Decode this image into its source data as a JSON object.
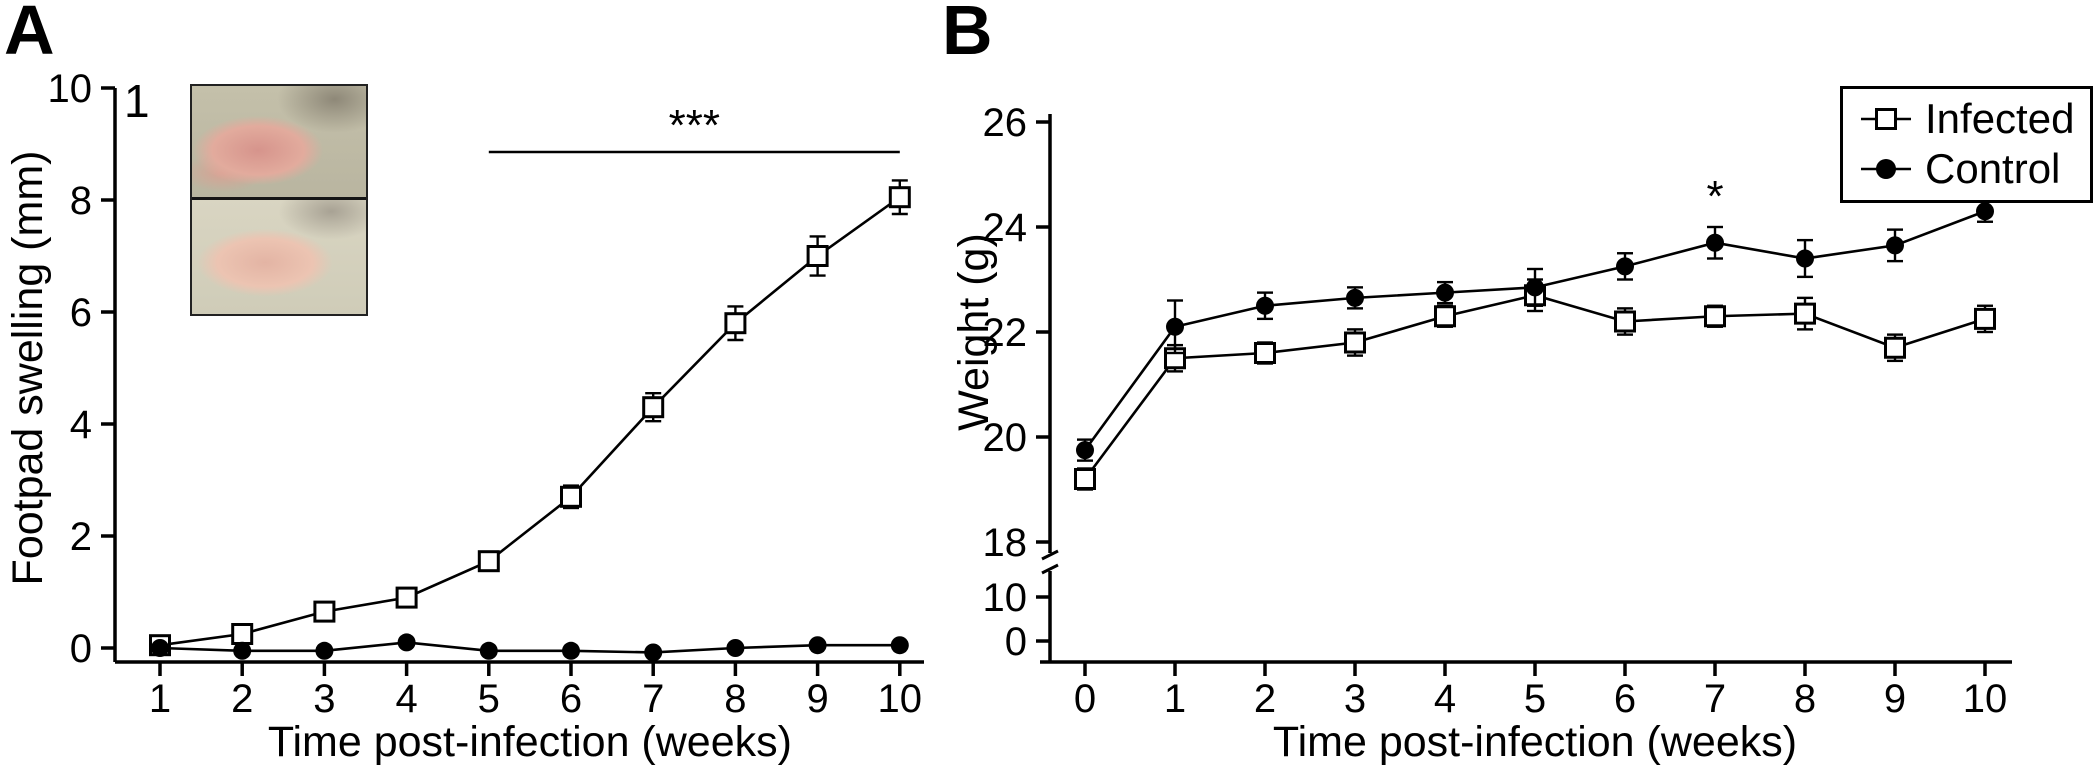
{
  "colors": {
    "background": "#ffffff",
    "foreground": "#000000"
  },
  "chart_data": [
    {
      "id": "panelA",
      "type": "line",
      "panel_label": "A",
      "inset_label": "1",
      "xlabel": "Time post-infection (weeks)",
      "ylabel": "Footpad swelling (mm)",
      "x": [
        1,
        2,
        3,
        4,
        5,
        6,
        7,
        8,
        9,
        10
      ],
      "ylim": [
        0,
        10
      ],
      "yticks": [
        0,
        2,
        4,
        6,
        8,
        10
      ],
      "grid": false,
      "series": [
        {
          "name": "Infected",
          "marker": "square-open",
          "values": [
            0.05,
            0.25,
            0.65,
            0.9,
            1.55,
            2.7,
            4.3,
            5.8,
            7.0,
            8.05
          ],
          "errors": [
            0.1,
            0.1,
            0.12,
            0.12,
            0.15,
            0.2,
            0.25,
            0.3,
            0.35,
            0.3
          ]
        },
        {
          "name": "Control",
          "marker": "circle-filled",
          "values": [
            0.0,
            -0.05,
            -0.05,
            0.1,
            -0.05,
            -0.05,
            -0.08,
            0.0,
            0.05,
            0.05
          ],
          "errors": [
            0.05,
            0.05,
            0.05,
            0.05,
            0.05,
            0.05,
            0.05,
            0.05,
            0.05,
            0.05
          ]
        }
      ],
      "significance_bar": {
        "x_start": 5,
        "x_end": 10,
        "label": "***"
      }
    },
    {
      "id": "panelB",
      "type": "line",
      "panel_label": "B",
      "xlabel": "Time post-infection (weeks)",
      "ylabel": "Weight (g)",
      "x": [
        0,
        1,
        2,
        3,
        4,
        5,
        6,
        7,
        8,
        9,
        10
      ],
      "ylim": [
        18,
        26
      ],
      "yticks": [
        18,
        20,
        22,
        24,
        26
      ],
      "broken_axis_ticks": [
        10,
        0
      ],
      "grid": false,
      "series": [
        {
          "name": "Infected",
          "marker": "square-open",
          "values": [
            19.2,
            21.5,
            21.6,
            21.8,
            22.3,
            22.7,
            22.2,
            22.3,
            22.35,
            21.7,
            22.25
          ],
          "errors": [
            0.2,
            0.25,
            0.2,
            0.25,
            0.2,
            0.3,
            0.25,
            0.2,
            0.3,
            0.25,
            0.25
          ]
        },
        {
          "name": "Control",
          "marker": "circle-filled",
          "values": [
            19.75,
            22.1,
            22.5,
            22.65,
            22.75,
            22.85,
            23.25,
            23.7,
            23.4,
            23.65,
            24.3
          ],
          "errors": [
            0.2,
            0.5,
            0.25,
            0.2,
            0.2,
            0.35,
            0.25,
            0.3,
            0.35,
            0.3,
            0.2
          ]
        }
      ],
      "point_annotations": [
        {
          "series": "Control",
          "x": 7,
          "label": "*"
        },
        {
          "series": "Control",
          "x": 9,
          "label": "***"
        },
        {
          "series": "Control",
          "x": 10,
          "label": "***"
        }
      ],
      "legend": {
        "position": "top-right",
        "entries": [
          {
            "label": "Infected",
            "marker": "square-open"
          },
          {
            "label": "Control",
            "marker": "circle-filled"
          }
        ]
      }
    }
  ]
}
